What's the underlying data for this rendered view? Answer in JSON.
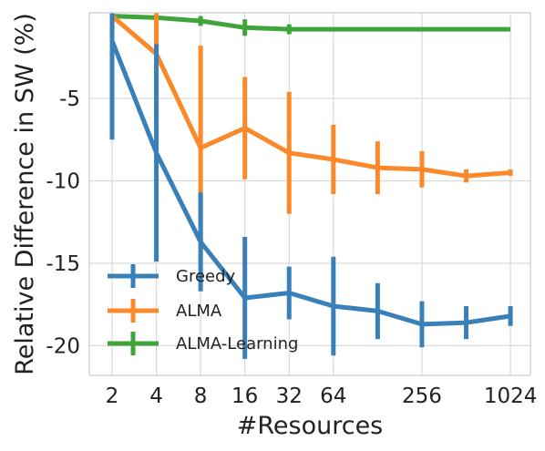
{
  "chart_data": {
    "type": "line",
    "title": "",
    "xlabel": "#Resources",
    "ylabel": "Relative Difference in SW (%)",
    "x_scale": "log2",
    "x": [
      2,
      4,
      8,
      16,
      32,
      64,
      128,
      256,
      512,
      1024
    ],
    "x_tick_values": [
      2,
      4,
      8,
      16,
      32,
      64,
      256,
      1024
    ],
    "x_tick_labels": [
      "2",
      "4",
      "8",
      "16",
      "32",
      "64",
      "256",
      "1024"
    ],
    "xlim": [
      1.4,
      1400
    ],
    "ylim": [
      -21.8,
      0.2
    ],
    "y_tick_values": [
      -5,
      -10,
      -15,
      -20
    ],
    "y_tick_labels": [
      "-5",
      "-10",
      "-15",
      "-20"
    ],
    "grid": true,
    "legend_position": "bottom-left",
    "series": [
      {
        "name": "Greedy",
        "color": "#3a80b8",
        "values": [
          -1.5,
          -8.3,
          -13.7,
          -17.1,
          -16.8,
          -17.6,
          -17.9,
          -18.7,
          -18.6,
          -18.2
        ],
        "errors": [
          6.0,
          6.6,
          3.0,
          3.7,
          1.6,
          3.0,
          1.7,
          1.4,
          1.0,
          0.6
        ]
      },
      {
        "name": "ALMA",
        "color": "#fb8929",
        "values": [
          0.0,
          -2.3,
          -8.0,
          -6.8,
          -8.3,
          -8.7,
          -9.2,
          -9.3,
          -9.7,
          -9.5
        ],
        "errors": [
          0.0,
          4.1,
          6.2,
          3.1,
          3.7,
          2.1,
          1.6,
          1.1,
          0.4,
          0.2
        ]
      },
      {
        "name": "ALMA-Learning",
        "color": "#3fa53a",
        "values": [
          0.0,
          -0.1,
          -0.3,
          -0.7,
          -0.8,
          -0.8,
          -0.8,
          -0.8,
          -0.8,
          -0.8
        ],
        "errors": [
          0.0,
          0.1,
          0.3,
          0.5,
          0.3,
          0.1,
          0.0,
          0.0,
          0.0,
          0.0
        ]
      }
    ]
  }
}
